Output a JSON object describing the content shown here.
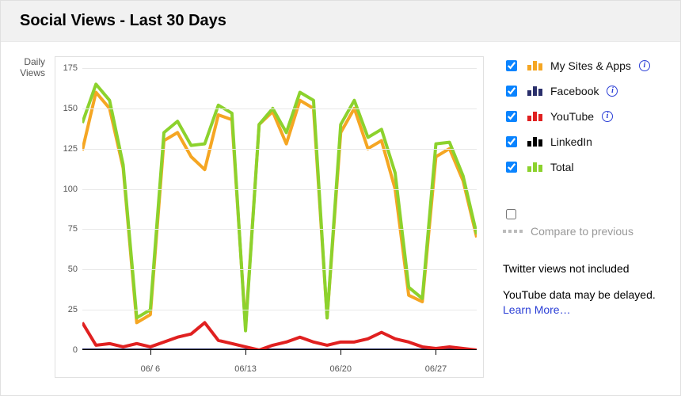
{
  "header": {
    "title": "Social Views - Last 30 Days"
  },
  "chart": {
    "type": "line",
    "y_title": "Daily\nViews",
    "ylim": [
      0,
      175
    ],
    "ytick_step": 25,
    "xlim": [
      0,
      29
    ],
    "x_ticks": [
      {
        "pos": 5,
        "label": "06/ 6"
      },
      {
        "pos": 12,
        "label": "06/13"
      },
      {
        "pos": 19,
        "label": "06/20"
      },
      {
        "pos": 26,
        "label": "06/27"
      }
    ],
    "grid_color": "#e8e8e8",
    "axis_color": "#000000",
    "line_width": 2,
    "series": {
      "mysites": {
        "label": "My Sites & Apps",
        "color": "#f5a623",
        "swatch_style": "bars",
        "info": true,
        "values": [
          124,
          160,
          150,
          113,
          17,
          22,
          130,
          135,
          120,
          112,
          146,
          143,
          14,
          140,
          148,
          128,
          155,
          150,
          20,
          135,
          150,
          125,
          130,
          100,
          34,
          30,
          120,
          125,
          105,
          70
        ]
      },
      "facebook": {
        "label": "Facebook",
        "color": "#2a2f6b",
        "swatch_style": "bars",
        "info": true,
        "values": [
          0,
          0,
          0,
          0,
          0,
          0,
          0,
          0,
          0,
          0,
          0,
          0,
          0,
          0,
          0,
          0,
          0,
          0,
          0,
          0,
          0,
          0,
          0,
          0,
          0,
          0,
          0,
          0,
          0,
          0
        ]
      },
      "youtube": {
        "label": "YouTube",
        "color": "#e02020",
        "swatch_style": "bars",
        "info": true,
        "values": [
          17,
          3,
          4,
          2,
          4,
          2,
          5,
          8,
          10,
          17,
          6,
          4,
          2,
          0,
          3,
          5,
          8,
          5,
          3,
          5,
          5,
          7,
          11,
          7,
          5,
          2,
          1,
          2,
          1,
          0
        ]
      },
      "linkedin": {
        "label": "LinkedIn",
        "color": "#000000",
        "swatch_style": "bars",
        "info": false,
        "values": [
          0,
          0,
          0,
          0,
          0,
          0,
          0,
          0,
          0,
          0,
          0,
          0,
          0,
          0,
          0,
          0,
          0,
          0,
          0,
          0,
          0,
          0,
          0,
          0,
          0,
          0,
          0,
          0,
          0,
          0
        ]
      },
      "total": {
        "label": "Total",
        "color": "#8cd22d",
        "swatch_style": "bars",
        "info": false,
        "values": [
          141,
          165,
          155,
          115,
          20,
          25,
          135,
          142,
          127,
          128,
          152,
          147,
          12,
          140,
          150,
          135,
          160,
          155,
          20,
          140,
          155,
          132,
          137,
          110,
          39,
          32,
          128,
          129,
          108,
          72
        ]
      }
    },
    "draw_order": [
      "linkedin",
      "facebook",
      "youtube",
      "mysites",
      "total"
    ]
  },
  "legend": {
    "order": [
      "mysites",
      "facebook",
      "youtube",
      "linkedin",
      "total"
    ],
    "checked": {
      "mysites": true,
      "facebook": true,
      "youtube": true,
      "linkedin": true,
      "total": true
    }
  },
  "compare": {
    "checked": false,
    "label": "Compare to previous"
  },
  "notes": {
    "twitter": "Twitter views not included",
    "youtube_delay": "YouTube data may be delayed. ",
    "learn_more": "Learn More…"
  },
  "colors": {
    "info_icon": "#2b3fd6",
    "link": "#2b3fd6",
    "checkbox_accent": "#0a84ff"
  }
}
